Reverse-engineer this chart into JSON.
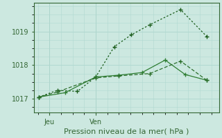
{
  "xlabel": "Pression niveau de la mer( hPa )",
  "background_color": "#cce8e0",
  "grid_color": "#b0d8d0",
  "spine_color": "#336633",
  "text_color": "#336633",
  "ylim": [
    1016.6,
    1019.85
  ],
  "xlim": [
    0,
    12
  ],
  "yticks": [
    1017,
    1018,
    1019
  ],
  "xtick_positions": [
    1.0,
    4.0
  ],
  "xtick_labels": [
    "Jeu",
    "Ven"
  ],
  "line_dotted_x": [
    0.3,
    1.5,
    2.8,
    4.0,
    5.2,
    6.3,
    7.5,
    9.5,
    11.2
  ],
  "line_dotted_y": [
    1017.05,
    1017.25,
    1017.22,
    1017.65,
    1018.55,
    1018.9,
    1019.2,
    1019.65,
    1018.85
  ],
  "line_solid_x": [
    0.3,
    2.0,
    4.0,
    5.5,
    7.0,
    8.5,
    9.8,
    11.2
  ],
  "line_solid_y": [
    1017.05,
    1017.18,
    1017.65,
    1017.7,
    1017.78,
    1018.15,
    1017.72,
    1017.55
  ],
  "line_dashed_x": [
    0.3,
    1.5,
    4.0,
    5.5,
    7.5,
    9.5,
    11.2
  ],
  "line_dashed_y": [
    1017.05,
    1017.2,
    1017.62,
    1017.68,
    1017.75,
    1018.12,
    1017.55
  ],
  "color_dotted": "#1a5c1a",
  "color_solid": "#2e7d32",
  "color_dashed": "#2a6e2a"
}
